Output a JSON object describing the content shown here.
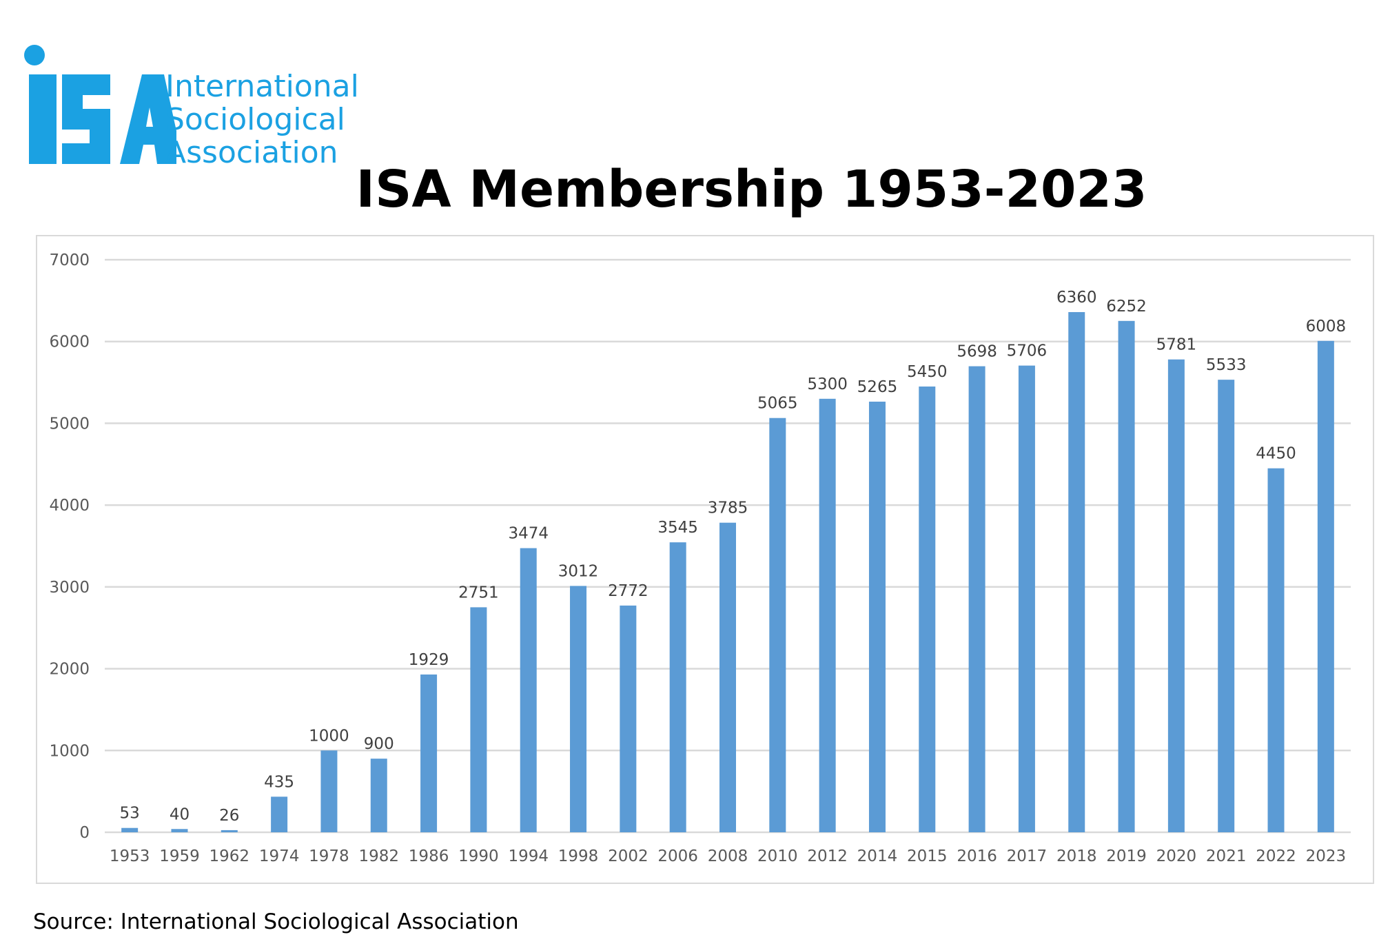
{
  "logo": {
    "mark": "ISA",
    "lines": [
      "International",
      "Sociological",
      "Association"
    ],
    "color": "#1ba1e2"
  },
  "source": "Source: International Sociological Association",
  "chart_data": {
    "type": "bar",
    "title": "ISA Membership 1953-2023",
    "xlabel": "",
    "ylabel": "",
    "ylim": [
      0,
      7000
    ],
    "yticks": [
      0,
      1000,
      2000,
      3000,
      4000,
      5000,
      6000,
      7000
    ],
    "grid": true,
    "bar_color": "#5b9bd5",
    "categories": [
      "1953",
      "1959",
      "1962",
      "1974",
      "1978",
      "1982",
      "1986",
      "1990",
      "1994",
      "1998",
      "2002",
      "2006",
      "2008",
      "2010",
      "2012",
      "2014",
      "2015",
      "2016",
      "2017",
      "2018",
      "2019",
      "2020",
      "2021",
      "2022",
      "2023"
    ],
    "values": [
      53,
      40,
      26,
      435,
      1000,
      900,
      1929,
      2751,
      3474,
      3012,
      2772,
      3545,
      3785,
      5065,
      5300,
      5265,
      5450,
      5698,
      5706,
      6360,
      6252,
      5781,
      5533,
      4450,
      6008
    ]
  }
}
